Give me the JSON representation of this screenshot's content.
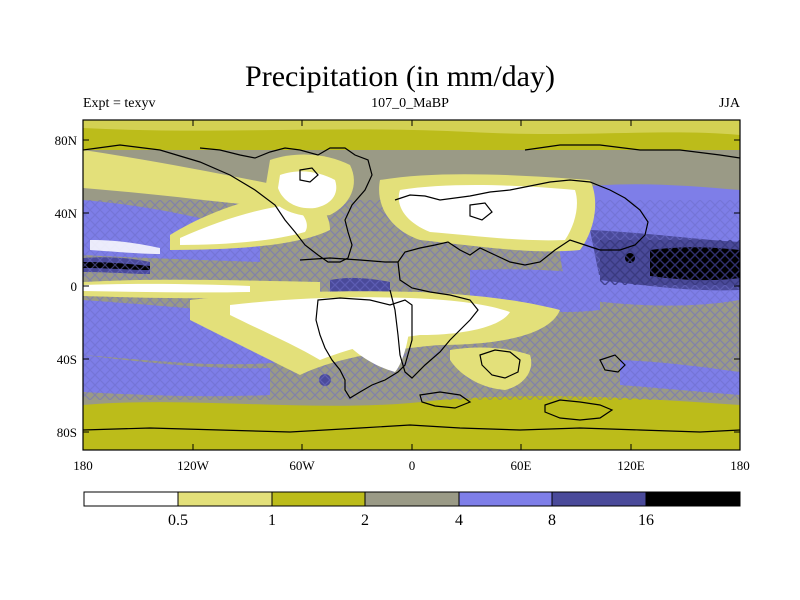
{
  "title": "Precipitation (in mm/day)",
  "subtitle_left": "Expt = texyv",
  "subtitle_center": "107_0_MaBP",
  "subtitle_right": "JJA",
  "lon_ticks": [
    "180",
    "120W",
    "60W",
    "0",
    "60E",
    "120E",
    "180"
  ],
  "lat_ticks": [
    "80N",
    "40N",
    "0",
    "40S",
    "80S"
  ],
  "colorbar": {
    "colors": [
      "#ffffff",
      "#e3e07a",
      "#bcbc1a",
      "#9a9a86",
      "#7e7ee8",
      "#4a4a9a",
      "#000000"
    ],
    "labels": [
      "0.5",
      "1",
      "2",
      "4",
      "8",
      "16"
    ]
  }
}
